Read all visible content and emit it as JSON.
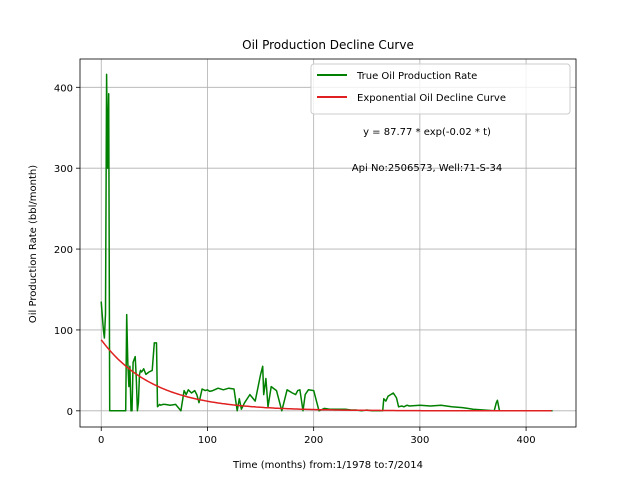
{
  "chart_data": {
    "type": "line",
    "title": "Oil Production Decline Curve",
    "xlabel": "Time (months) from:1/1978 to:7/2014",
    "ylabel": "Oil Production Rate (bbl/month)",
    "xlim": [
      -20,
      447
    ],
    "ylim": [
      -20,
      435
    ],
    "xticks": [
      0,
      100,
      200,
      300,
      400
    ],
    "yticks": [
      0,
      100,
      200,
      300,
      400
    ],
    "grid": true,
    "legend_position": "top-right",
    "annotations": [
      "y = 87.77 * exp(-0.02 * t)",
      "Api No:2506573, Well:71-S-34"
    ],
    "series": [
      {
        "name": "True Oil Production Rate",
        "color": "#008000",
        "x": [
          0,
          2,
          3,
          4,
          5,
          6,
          7,
          8,
          10,
          15,
          20,
          23,
          24,
          25,
          26,
          27,
          28,
          29,
          30,
          32,
          33,
          34,
          35,
          36,
          37,
          38,
          40,
          42,
          45,
          48,
          50,
          52,
          53,
          55,
          56,
          58,
          60,
          65,
          70,
          75,
          78,
          80,
          82,
          85,
          88,
          90,
          92,
          95,
          98,
          100,
          102,
          105,
          110,
          115,
          120,
          125,
          128,
          130,
          132,
          135,
          140,
          145,
          150,
          152,
          153,
          155,
          157,
          160,
          165,
          170,
          175,
          180,
          183,
          185,
          187,
          190,
          192,
          195,
          200,
          205,
          210,
          215,
          220,
          225,
          230,
          235,
          240,
          245,
          250,
          255,
          260,
          265,
          266,
          268,
          270,
          275,
          278,
          280,
          283,
          285,
          288,
          290,
          300,
          310,
          320,
          330,
          340,
          345,
          350,
          360,
          370,
          372,
          373,
          375,
          380,
          390,
          400,
          410,
          420,
          425
        ],
        "y": [
          135,
          100,
          90,
          120,
          416,
          300,
          392,
          0,
          0,
          0,
          0,
          0,
          119,
          60,
          30,
          55,
          0,
          0,
          60,
          67,
          40,
          0,
          10,
          45,
          50,
          48,
          52,
          45,
          48,
          50,
          84,
          84,
          5,
          8,
          7,
          8,
          8,
          7,
          8,
          0,
          25,
          20,
          26,
          22,
          25,
          20,
          10,
          27,
          25,
          26,
          24,
          25,
          28,
          26,
          28,
          27,
          0,
          15,
          2,
          10,
          20,
          12,
          45,
          55,
          20,
          40,
          5,
          30,
          25,
          0,
          26,
          22,
          20,
          25,
          26,
          0,
          20,
          26,
          25,
          0,
          3,
          2,
          2,
          2,
          2,
          1,
          1,
          0,
          1,
          0,
          0,
          0,
          15,
          12,
          18,
          22,
          16,
          5,
          6,
          5,
          7,
          6,
          7,
          6,
          7,
          5,
          4,
          3,
          2,
          1,
          0,
          10,
          13,
          0,
          0,
          0,
          0,
          0,
          0,
          0
        ]
      },
      {
        "name": "Exponential Oil Decline Curve",
        "color": "#e02020",
        "equation": {
          "a": 87.77,
          "b": 0.02
        },
        "x_range": [
          0,
          425
        ]
      }
    ]
  }
}
